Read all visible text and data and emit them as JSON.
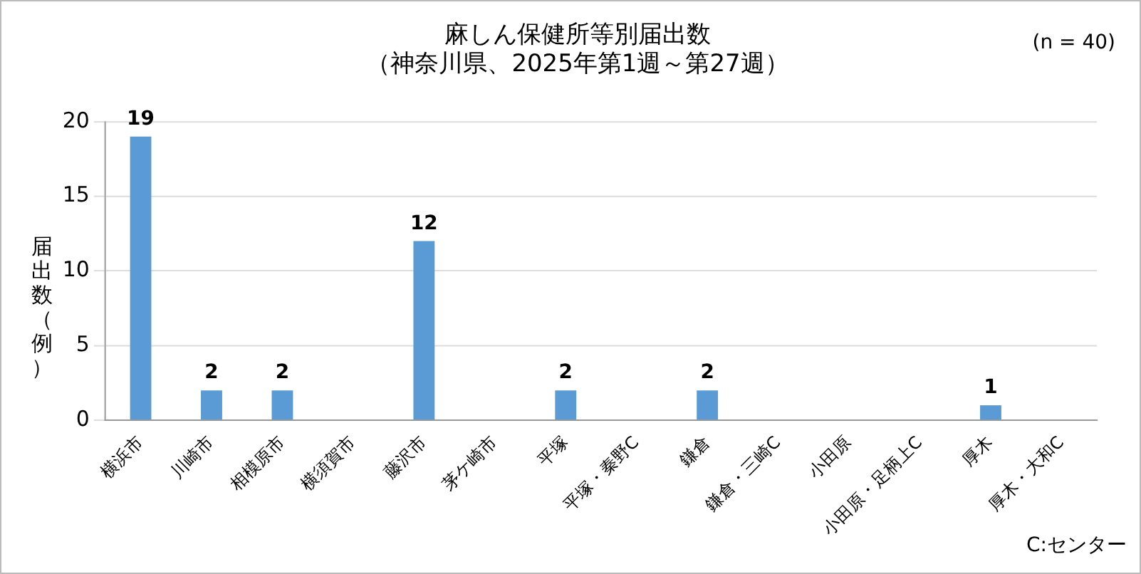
{
  "chart_data": {
    "type": "bar",
    "title": "麻しん保健所等別届出数",
    "subtitle": "（神奈川県、2025年第1週～第27週）",
    "ylabel": "届出数（例）",
    "categories": [
      "横浜市",
      "川崎市",
      "相模原市",
      "横須賀市",
      "藤沢市",
      "茅ケ崎市",
      "平塚",
      "平塚・秦野C",
      "鎌倉",
      "鎌倉・三崎C",
      "小田原",
      "小田原・足柄上C",
      "厚木",
      "厚木・大和C"
    ],
    "values": [
      19,
      2,
      2,
      0,
      12,
      0,
      2,
      0,
      2,
      0,
      0,
      0,
      1,
      0
    ],
    "value_labels": [
      "19",
      "2",
      "2",
      null,
      "12",
      null,
      "2",
      null,
      "2",
      null,
      null,
      null,
      "1",
      null
    ],
    "color": "#5b9bd5",
    "ylim": [
      0,
      20
    ],
    "yticks": [
      0,
      5,
      10,
      15,
      20
    ],
    "grid": "y",
    "legend": false,
    "annotations": [
      "(n = 40)",
      "C:センター"
    ]
  }
}
